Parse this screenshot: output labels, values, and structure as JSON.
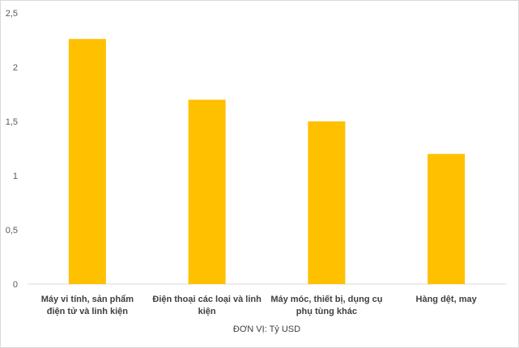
{
  "chart_data": {
    "type": "bar",
    "categories": [
      [
        "Máy vi tính, sản phẩm",
        "điện tử và linh kiện"
      ],
      [
        "Điện thoại các loại và linh",
        "kiện"
      ],
      [
        "Máy móc, thiết bị, dụng cụ",
        "phụ tùng khác"
      ],
      [
        "Hàng dệt, may"
      ]
    ],
    "values": [
      2.26,
      1.7,
      1.5,
      1.2
    ],
    "title": "",
    "xlabel": "ĐƠN VỊ: Tỷ USD",
    "ylabel": "",
    "ylim": [
      0,
      2.5
    ],
    "yticks": [
      0,
      0.5,
      1,
      1.5,
      2,
      2.5
    ],
    "ytick_labels": [
      "0",
      "0,5",
      "1",
      "1,5",
      "2",
      "2,5"
    ],
    "grid": false,
    "legend": "none",
    "colors": {
      "bar": "#FFC000",
      "axis": "#d9d9d9"
    }
  }
}
